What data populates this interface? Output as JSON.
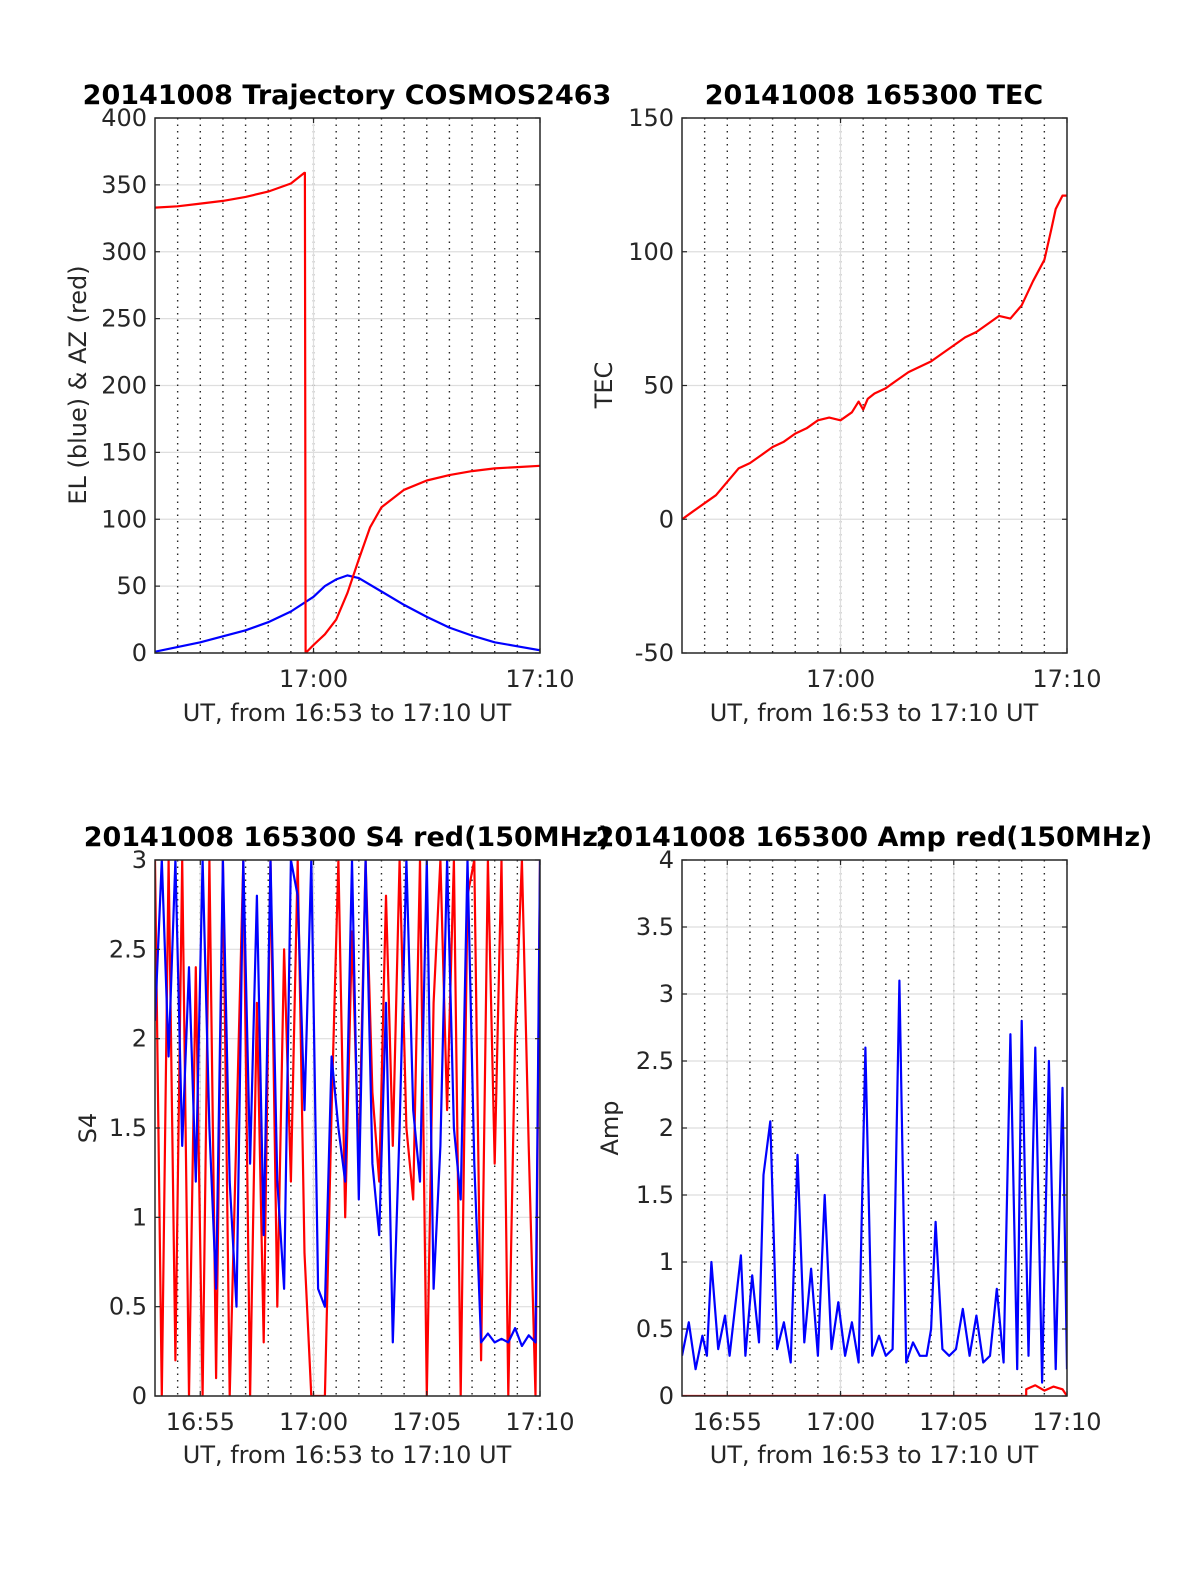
{
  "colors": {
    "el_blue": "#0000ff",
    "az_red": "#ff0000",
    "grid_major": "#dedede",
    "grid_minor": "#262626"
  },
  "chart_data": [
    {
      "type": "line",
      "title": "20141008 Trajectory COSMOS2463",
      "xlabel": "UT, from 16:53 to 17:10 UT",
      "ylabel": "EL (blue) & AZ (red)",
      "x_unit": "minutes after 16:53",
      "xlim": [
        0,
        17
      ],
      "ylim": [
        0,
        400
      ],
      "yticks": [
        0,
        50,
        100,
        150,
        200,
        250,
        300,
        350,
        400
      ],
      "xticks": [
        {
          "value": 7,
          "label": "17:00"
        },
        {
          "value": 17,
          "label": "17:10"
        }
      ],
      "minor_grid_x_step": 1,
      "grid": true,
      "series": [
        {
          "name": "EL (blue)",
          "color": "#0000ff",
          "x": [
            0,
            2,
            4,
            5,
            6,
            7,
            7.5,
            8,
            8.5,
            9,
            10,
            11,
            12,
            13,
            14,
            15,
            16,
            17
          ],
          "y": [
            1,
            8,
            17,
            23,
            31,
            42,
            50,
            55,
            58,
            56,
            46,
            36,
            27,
            19,
            13,
            8,
            5,
            2
          ]
        },
        {
          "name": "AZ (red)",
          "color": "#ff0000",
          "x": [
            0,
            1,
            2,
            3,
            4,
            5,
            6,
            6.6,
            6.62,
            6.65,
            7,
            7.5,
            8,
            8.5,
            9,
            9.5,
            10,
            11,
            12,
            13,
            14,
            15,
            16,
            17
          ],
          "y": [
            333,
            334,
            336,
            338,
            341,
            345,
            351,
            359,
            359,
            0,
            6,
            14,
            25,
            45,
            70,
            94,
            109,
            122,
            129,
            133,
            136,
            138,
            139,
            140
          ]
        }
      ]
    },
    {
      "type": "line",
      "title": "20141008 165300 TEC",
      "xlabel": "UT, from 16:53 to 17:10 UT",
      "ylabel": "TEC",
      "x_unit": "minutes after 16:53",
      "xlim": [
        0,
        17
      ],
      "ylim": [
        -50,
        150
      ],
      "yticks": [
        -50,
        0,
        50,
        100,
        150
      ],
      "xticks": [
        {
          "value": 7,
          "label": "17:00"
        },
        {
          "value": 17,
          "label": "17:10"
        }
      ],
      "minor_grid_x_step": 1,
      "grid": true,
      "series": [
        {
          "name": "TEC",
          "color": "#ff0000",
          "x": [
            0,
            0.5,
            1,
            1.5,
            2,
            2.5,
            3,
            3.5,
            4,
            4.5,
            5,
            5.5,
            6,
            6.5,
            7,
            7.5,
            7.8,
            8,
            8.2,
            8.5,
            9,
            9.5,
            10,
            10.5,
            11,
            11.5,
            12,
            12.5,
            13,
            13.5,
            14,
            14.5,
            15,
            15.5,
            16,
            16.3,
            16.5,
            16.8,
            17
          ],
          "y": [
            0,
            3,
            6,
            9,
            14,
            19,
            21,
            24,
            27,
            29,
            32,
            34,
            37,
            38,
            37,
            40,
            44,
            41,
            45,
            47,
            49,
            52,
            55,
            57,
            59,
            62,
            65,
            68,
            70,
            73,
            76,
            75,
            80,
            89,
            97,
            108,
            116,
            121,
            121
          ]
        }
      ]
    },
    {
      "type": "line",
      "title": "20141008 165300 S4 red(150MHz)",
      "xlabel": "UT, from 16:53 to 17:10 UT",
      "ylabel": "S4",
      "x_unit": "minutes after 16:53",
      "xlim": [
        0,
        17
      ],
      "ylim": [
        0,
        3
      ],
      "yticks": [
        0,
        0.5,
        1,
        1.5,
        2,
        2.5,
        3
      ],
      "xticks": [
        {
          "value": 2,
          "label": "16:55"
        },
        {
          "value": 7,
          "label": "17:00"
        },
        {
          "value": 12,
          "label": "17:05"
        },
        {
          "value": 17,
          "label": "17:10"
        }
      ],
      "minor_grid_x_step": 1,
      "grid": true,
      "series": [
        {
          "name": "red",
          "color": "#ff0000",
          "x": [
            0,
            0.3,
            0.6,
            0.9,
            1.2,
            1.5,
            1.8,
            2.1,
            2.4,
            2.7,
            3,
            3.3,
            3.6,
            3.9,
            4.2,
            4.5,
            4.8,
            5.1,
            5.4,
            5.7,
            6,
            6.3,
            6.6,
            6.9,
            7.2,
            7.5,
            7.8,
            8.1,
            8.4,
            8.7,
            9,
            9.3,
            9.6,
            9.9,
            10.2,
            10.5,
            10.8,
            11.1,
            11.4,
            11.7,
            12,
            12.3,
            12.6,
            12.9,
            13.2,
            13.5,
            13.8,
            14.1,
            14.4,
            14.7,
            15,
            15.3,
            15.6,
            15.9,
            16.2,
            16.5,
            16.8,
            17
          ],
          "y": [
            3,
            0,
            3,
            0.2,
            3,
            0,
            2.4,
            0,
            3,
            0.1,
            3,
            0,
            1.5,
            3,
            0,
            2.2,
            0.3,
            3,
            0.5,
            2.5,
            1.2,
            3,
            0.8,
            0,
            0,
            0,
            1.6,
            3,
            1,
            2.6,
            1.3,
            3,
            1.7,
            1.2,
            2.8,
            1.4,
            3,
            1.5,
            1.1,
            3,
            0,
            2.2,
            3,
            1.6,
            3,
            0,
            2.8,
            3,
            0.2,
            3,
            1.3,
            3,
            0,
            2,
            3,
            1.4,
            0,
            3
          ]
        },
        {
          "name": "blue",
          "color": "#0000ff",
          "x": [
            0,
            0.3,
            0.6,
            0.9,
            1.2,
            1.5,
            1.8,
            2.1,
            2.4,
            2.7,
            3,
            3.3,
            3.6,
            3.9,
            4.2,
            4.5,
            4.8,
            5.1,
            5.4,
            5.7,
            6,
            6.3,
            6.6,
            6.9,
            7.2,
            7.5,
            7.8,
            8.1,
            8.4,
            8.7,
            9,
            9.3,
            9.6,
            9.9,
            10.2,
            10.5,
            10.8,
            11.1,
            11.4,
            11.7,
            12,
            12.3,
            12.6,
            12.9,
            13.2,
            13.5,
            13.8,
            14.1,
            14.4,
            14.7,
            15,
            15.3,
            15.6,
            15.9,
            16.2,
            16.5,
            16.8,
            17
          ],
          "y": [
            2.1,
            3,
            1.9,
            3,
            1.4,
            2.4,
            1.2,
            3,
            1.5,
            0.6,
            3,
            1.2,
            0.5,
            3,
            1.3,
            2.8,
            0.9,
            3,
            1.2,
            0.6,
            3,
            2.8,
            1.6,
            3,
            0.6,
            0.5,
            1.9,
            1.5,
            1.2,
            3,
            1.1,
            3,
            1.3,
            0.9,
            2.2,
            0.3,
            1.5,
            3,
            1.6,
            1.2,
            3,
            0.6,
            1.4,
            3,
            1.5,
            1.1,
            3,
            1.3,
            0.3,
            0.35,
            0.3,
            0.32,
            0.3,
            0.38,
            0.28,
            0.34,
            0.3,
            3
          ]
        }
      ]
    },
    {
      "type": "line",
      "title": "20141008 165300 Amp red(150MHz)",
      "xlabel": "UT, from 16:53 to 17:10 UT",
      "ylabel": "Amp",
      "x_unit": "minutes after 16:53",
      "xlim": [
        0,
        17
      ],
      "ylim": [
        0,
        4
      ],
      "yticks": [
        0,
        0.5,
        1,
        1.5,
        2,
        2.5,
        3,
        3.5,
        4
      ],
      "xticks": [
        {
          "value": 2,
          "label": "16:55"
        },
        {
          "value": 7,
          "label": "17:00"
        },
        {
          "value": 12,
          "label": "17:05"
        },
        {
          "value": 17,
          "label": "17:10"
        }
      ],
      "minor_grid_x_step": 1,
      "grid": true,
      "series": [
        {
          "name": "blue",
          "color": "#0000ff",
          "x": [
            0,
            0.3,
            0.6,
            0.9,
            1.1,
            1.3,
            1.6,
            1.9,
            2.1,
            2.4,
            2.6,
            2.8,
            3.1,
            3.4,
            3.6,
            3.9,
            4.2,
            4.5,
            4.8,
            5.1,
            5.4,
            5.7,
            6,
            6.3,
            6.6,
            6.9,
            7.2,
            7.5,
            7.8,
            8.1,
            8.4,
            8.7,
            9,
            9.3,
            9.6,
            9.9,
            10.2,
            10.5,
            10.8,
            11,
            11.2,
            11.5,
            11.8,
            12.1,
            12.4,
            12.7,
            13,
            13.3,
            13.6,
            13.9,
            14.2,
            14.5,
            14.8,
            15,
            15.3,
            15.6,
            15.9,
            16.2,
            16.5,
            16.8,
            17
          ],
          "y": [
            0.3,
            0.55,
            0.2,
            0.45,
            0.3,
            1,
            0.35,
            0.6,
            0.3,
            0.75,
            1.05,
            0.3,
            0.9,
            0.4,
            1.65,
            2.05,
            0.35,
            0.55,
            0.25,
            1.8,
            0.4,
            0.95,
            0.3,
            1.5,
            0.35,
            0.7,
            0.3,
            0.55,
            0.25,
            2.6,
            0.3,
            0.45,
            0.3,
            0.35,
            3.1,
            0.25,
            0.4,
            0.3,
            0.3,
            0.5,
            1.3,
            0.35,
            0.3,
            0.35,
            0.65,
            0.3,
            0.6,
            0.25,
            0.3,
            0.8,
            0.25,
            2.7,
            0.2,
            2.8,
            0.3,
            2.6,
            0.1,
            2.5,
            0.2,
            2.3,
            0.2
          ]
        },
        {
          "name": "red",
          "color": "#ff0000",
          "x": [
            0,
            15.2,
            15.2,
            15.6,
            16,
            16.4,
            16.8,
            17
          ],
          "y": [
            0,
            0,
            0.05,
            0.08,
            0.04,
            0.07,
            0.05,
            0
          ]
        }
      ]
    }
  ]
}
